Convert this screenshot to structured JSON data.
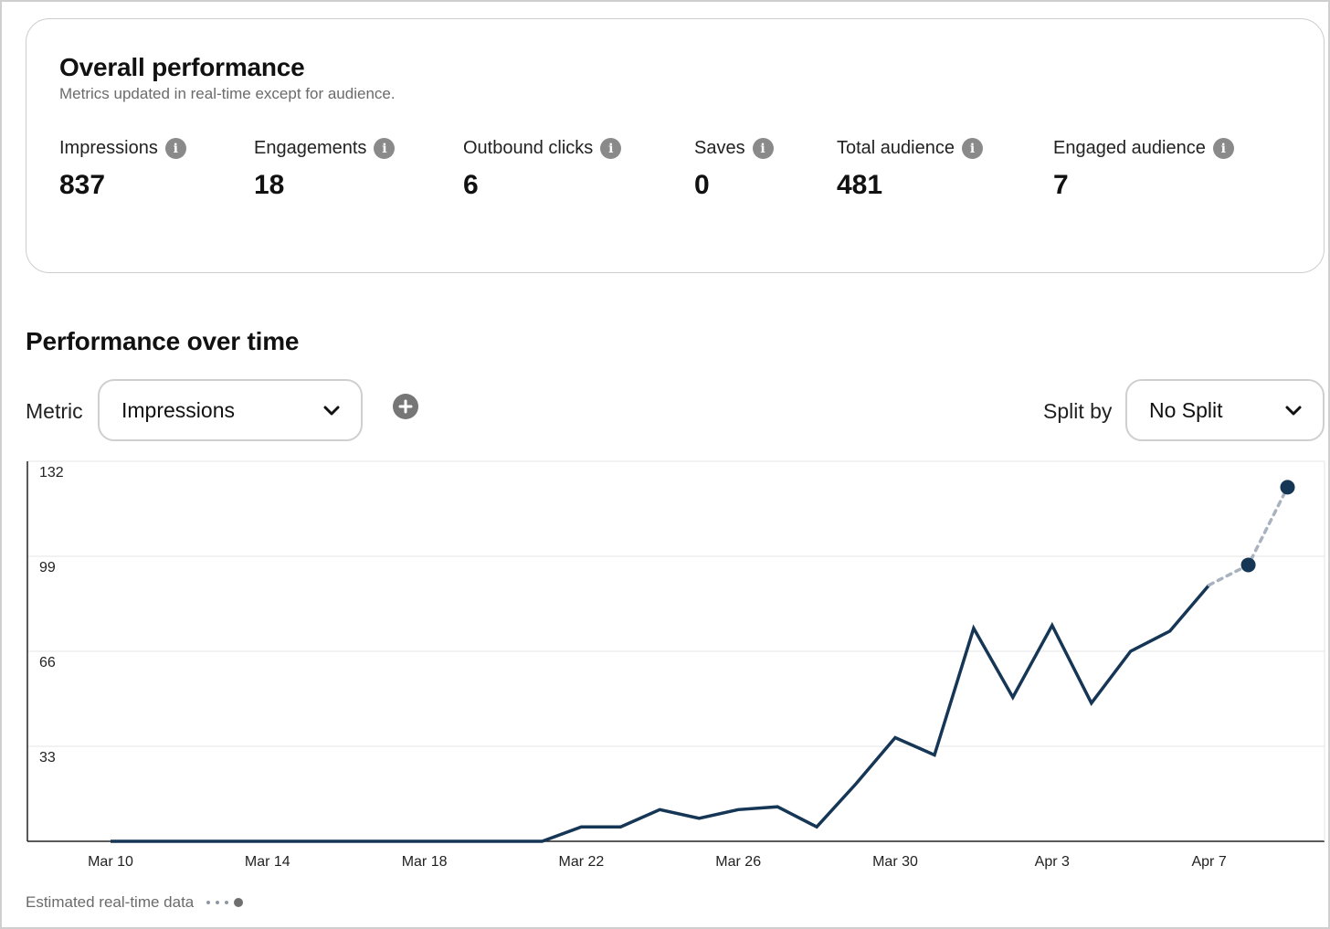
{
  "overall": {
    "title": "Overall performance",
    "subtitle": "Metrics updated in real-time except for audience.",
    "metrics": [
      {
        "label": "Impressions",
        "value": "837"
      },
      {
        "label": "Engagements",
        "value": "18"
      },
      {
        "label": "Outbound clicks",
        "value": "6"
      },
      {
        "label": "Saves",
        "value": "0"
      },
      {
        "label": "Total audience",
        "value": "481"
      },
      {
        "label": "Engaged audience",
        "value": "7"
      }
    ]
  },
  "performance": {
    "title": "Performance over time",
    "metric_label": "Metric",
    "metric_selected": "Impressions",
    "split_label": "Split by",
    "split_selected": "No Split"
  },
  "legend": {
    "estimated_label": "Estimated real-time data"
  },
  "colors": {
    "line": "#163656",
    "estimated_line": "#a9b2bf",
    "grid": "#e6e6e6",
    "axis": "#222222"
  },
  "chart_data": {
    "type": "line",
    "x_tick_labels": [
      "Mar 10",
      "Mar 14",
      "Mar 18",
      "Mar 22",
      "Mar 26",
      "Mar 30",
      "Apr 3",
      "Apr 7"
    ],
    "y_ticks": [
      33,
      66,
      99,
      132
    ],
    "ylim": [
      0,
      132
    ],
    "grid": true,
    "series": [
      {
        "style": "solid",
        "x": [
          "Mar 10",
          "Mar 11",
          "Mar 12",
          "Mar 13",
          "Mar 14",
          "Mar 15",
          "Mar 16",
          "Mar 17",
          "Mar 18",
          "Mar 19",
          "Mar 20",
          "Mar 21",
          "Mar 22",
          "Mar 23",
          "Mar 24",
          "Mar 25",
          "Mar 26",
          "Mar 27",
          "Mar 28",
          "Mar 29",
          "Mar 30",
          "Mar 31",
          "Apr 1",
          "Apr 2",
          "Apr 3",
          "Apr 4",
          "Apr 5",
          "Apr 6",
          "Apr 7"
        ],
        "values": [
          0,
          0,
          0,
          0,
          0,
          0,
          0,
          0,
          0,
          0,
          0,
          0,
          5,
          5,
          11,
          8,
          11,
          12,
          5,
          20,
          36,
          30,
          74,
          50,
          75,
          48,
          66,
          73,
          89
        ]
      },
      {
        "style": "dashed",
        "estimated": true,
        "x": [
          "Apr 7",
          "Apr 8",
          "Apr 9"
        ],
        "values": [
          89,
          96,
          123
        ],
        "markers": [
          false,
          true,
          true
        ]
      }
    ]
  }
}
